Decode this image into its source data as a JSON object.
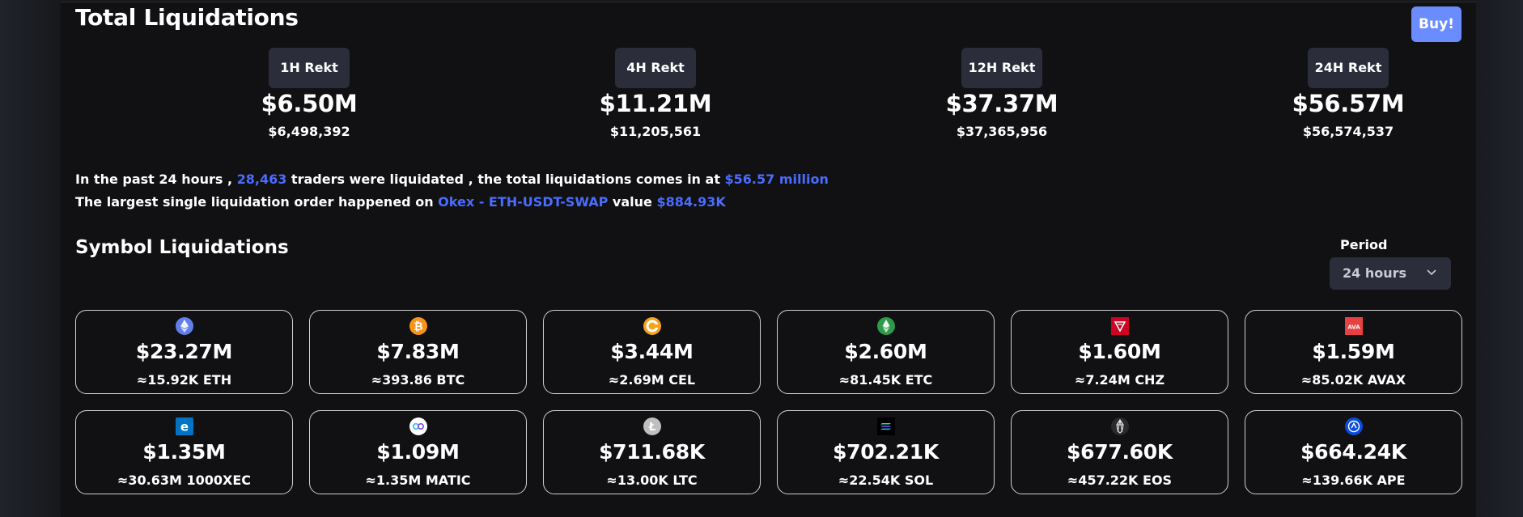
{
  "header": {
    "title": "Total Liquidations",
    "buy_label": "Buy!"
  },
  "rekt": [
    {
      "label": "1H Rekt",
      "short": "$6.50M",
      "full": "$6,498,392"
    },
    {
      "label": "4H Rekt",
      "short": "$11.21M",
      "full": "$11,205,561"
    },
    {
      "label": "12H Rekt",
      "short": "$37.37M",
      "full": "$37,365,956"
    },
    {
      "label": "24H Rekt",
      "short": "$56.57M",
      "full": "$56,574,537"
    }
  ],
  "summary": {
    "line1_a": "In the past 24 hours , ",
    "traders": "28,463",
    "line1_b": " traders were liquidated , the total liquidations comes in at ",
    "total": "$56.57 million",
    "line2_a": "The largest single liquidation order happened on ",
    "order": "Okex - ETH-USDT-SWAP",
    "line2_b": " value ",
    "value": "$884.93K"
  },
  "symbols": {
    "title": "Symbol Liquidations",
    "period_label": "Period",
    "period_value": "24 hours"
  },
  "colors": {
    "accent": "#4a6cff",
    "buy": "#6b8cff",
    "card_border": "#cfcfd4"
  },
  "cards": [
    {
      "icon": "eth-icon",
      "value": "$23.27M",
      "amount": "≈15.92K ETH"
    },
    {
      "icon": "btc-icon",
      "value": "$7.83M",
      "amount": "≈393.86 BTC"
    },
    {
      "icon": "cel-icon",
      "value": "$3.44M",
      "amount": "≈2.69M CEL"
    },
    {
      "icon": "etc-icon",
      "value": "$2.60M",
      "amount": "≈81.45K ETC"
    },
    {
      "icon": "chz-icon",
      "value": "$1.60M",
      "amount": "≈7.24M CHZ"
    },
    {
      "icon": "avax-icon",
      "value": "$1.59M",
      "amount": "≈85.02K AVAX"
    },
    {
      "icon": "xec-icon",
      "value": "$1.35M",
      "amount": "≈30.63M 1000XEC"
    },
    {
      "icon": "matic-icon",
      "value": "$1.09M",
      "amount": "≈1.35M MATIC"
    },
    {
      "icon": "ltc-icon",
      "value": "$711.68K",
      "amount": "≈13.00K LTC"
    },
    {
      "icon": "sol-icon",
      "value": "$702.21K",
      "amount": "≈22.54K SOL"
    },
    {
      "icon": "eos-icon",
      "value": "$677.60K",
      "amount": "≈457.22K EOS"
    },
    {
      "icon": "ape-icon",
      "value": "$664.24K",
      "amount": "≈139.66K APE"
    }
  ]
}
